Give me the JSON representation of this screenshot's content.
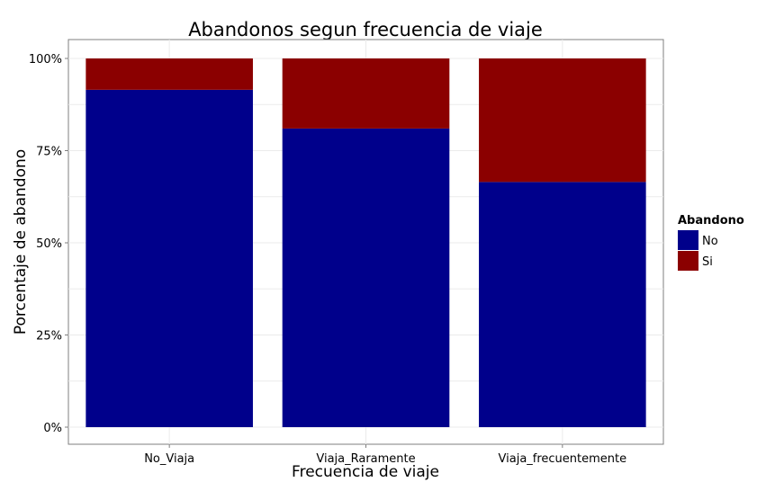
{
  "chart_data": {
    "type": "bar",
    "stacked": "percent",
    "title": "Abandonos segun frecuencia de viaje",
    "xlabel": "Frecuencia de viaje",
    "ylabel": "Porcentaje de abandono",
    "categories": [
      "No_Viaja",
      "Viaja_Raramente",
      "Viaja_frecuentemente"
    ],
    "series": [
      {
        "name": "No",
        "color": "#00008B",
        "values": [
          0.915,
          0.81,
          0.665
        ]
      },
      {
        "name": "Si",
        "color": "#8B0000",
        "values": [
          0.085,
          0.19,
          0.335
        ]
      }
    ],
    "ylim": [
      0,
      1
    ],
    "yticks": [
      {
        "value": 0,
        "label": "0%"
      },
      {
        "value": 0.25,
        "label": "25%"
      },
      {
        "value": 0.5,
        "label": "50%"
      },
      {
        "value": 0.75,
        "label": "75%"
      },
      {
        "value": 1,
        "label": "100%"
      }
    ],
    "legend": {
      "title": "Abandono",
      "position": "right"
    },
    "grid": true
  }
}
